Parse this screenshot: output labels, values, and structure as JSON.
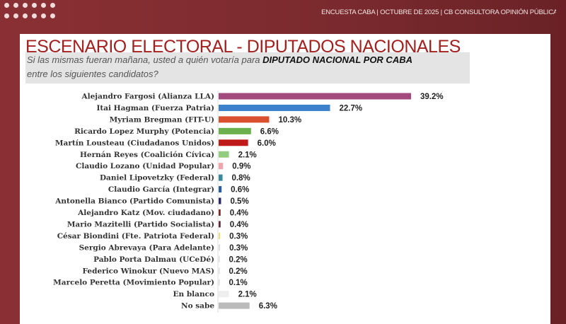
{
  "header": {
    "text": "ENCUESTA CABA | OCTUBRE DE 2025 | CB CONSULTORA OPINIÓN PÚBLICA"
  },
  "title": {
    "main": "ESCENARIO ELECTORAL",
    "sub": " - DIPUTADOS NACIONALES"
  },
  "question": {
    "part1": "Si las mismas fueran mañana, usted a quién votaría para ",
    "bold": "DIPUTADO NACIONAL POR CABA",
    "part2": "entre los siguientes candidatos?"
  },
  "chart_data": {
    "type": "bar",
    "orientation": "horizontal",
    "title": "ESCENARIO ELECTORAL - DIPUTADOS NACIONALES",
    "xlabel": "",
    "ylabel": "",
    "xlim": [
      0,
      40
    ],
    "unit": "%",
    "categories": [
      "Alejandro Fargosi (Alianza LLA)",
      "Itai Hagman (Fuerza Patria)",
      "Myriam Bregman (FIT-U)",
      "Ricardo Lopez Murphy (Potencia)",
      "Martín Lousteau (Ciudadanos Unidos)",
      "Hernán Reyes (Coalición Cívica)",
      "Claudio Lozano (Unidad Popular)",
      "Daniel Lipovetzky (Federal)",
      "Claudio García (Integrar)",
      "Antonella Bianco (Partido Comunista)",
      "Alejandro Katz (Mov. ciudadano)",
      "Mario Mazitelli (Partido Socialista)",
      "César Biondini (Fte. Patriota Federal)",
      "Sergio Abrevaya (Para Adelante)",
      "Pablo Porta Dalmau (UCeDé)",
      "Federico Winokur (Nuevo MAS)",
      "Marcelo Peretta (Movimiento Popular)",
      "En blanco",
      "No sabe"
    ],
    "values": [
      39.2,
      22.7,
      10.3,
      6.6,
      6.0,
      2.1,
      0.9,
      0.8,
      0.6,
      0.5,
      0.4,
      0.4,
      0.3,
      0.3,
      0.2,
      0.2,
      0.1,
      2.1,
      6.3
    ],
    "labels": [
      "39.2%",
      "22.7%",
      "10.3%",
      "6.6%",
      "6.0%",
      "2.1%",
      "0.9%",
      "0.8%",
      "0.6%",
      "0.5%",
      "0.4%",
      "0.4%",
      "0.3%",
      "0.3%",
      "0.2%",
      "0.2%",
      "0.1%",
      "2.1%",
      "6.3%"
    ],
    "colors": [
      "#a34a7c",
      "#3d80cc",
      "#d9502f",
      "#6ab04c",
      "#c0191a",
      "#92cc7e",
      "#f0a4ac",
      "#3a8a9a",
      "#2a5aa0",
      "#2a2a6a",
      "#7a2a2a",
      "#5a2a3a",
      "#e8e070",
      "#dddddd",
      "#dddddd",
      "#dddddd",
      "#dddddd",
      "#eeeeee",
      "#bbbbbb"
    ],
    "grid": false,
    "legend": "none"
  }
}
